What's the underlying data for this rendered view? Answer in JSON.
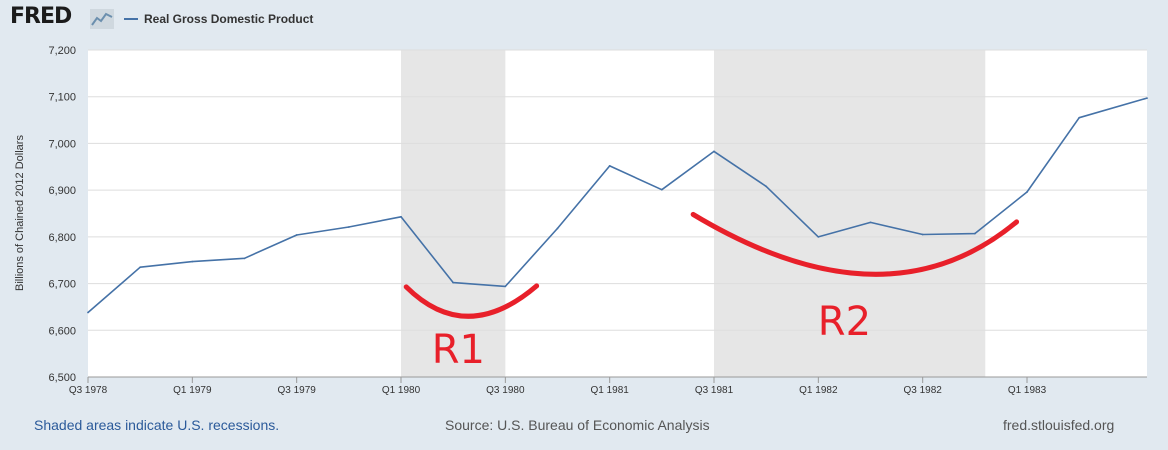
{
  "header": {
    "logo_text": "FRED",
    "logo_icon": "chart-line-icon",
    "legend_label": "Real Gross Domestic Product"
  },
  "colors": {
    "series": "#4572a7",
    "recession": "#e6e6e6",
    "annotation": "#e8202a",
    "background": "#e1e9f0",
    "plot": "#ffffff",
    "grid": "#dddddd"
  },
  "chart_data": {
    "type": "line",
    "title": "",
    "ylabel": "Billions of Chained 2012 Dollars",
    "xlabel": "",
    "ylim": [
      6500,
      7200
    ],
    "xlim": [
      0,
      20.3
    ],
    "yticks": [
      6500,
      6600,
      6700,
      6800,
      6900,
      7000,
      7100,
      7200
    ],
    "ytick_labels": [
      "6,500",
      "6,600",
      "6,700",
      "6,800",
      "6,900",
      "7,000",
      "7,100",
      "7,200"
    ],
    "xticks": [
      {
        "label": "Q3 1978",
        "index": 0
      },
      {
        "label": "Q1 1979",
        "index": 2
      },
      {
        "label": "Q3 1979",
        "index": 4
      },
      {
        "label": "Q1 1980",
        "index": 6
      },
      {
        "label": "Q3 1980",
        "index": 8
      },
      {
        "label": "Q1 1981",
        "index": 10
      },
      {
        "label": "Q3 1981",
        "index": 12
      },
      {
        "label": "Q1 1982",
        "index": 14
      },
      {
        "label": "Q3 1982",
        "index": 16
      },
      {
        "label": "Q1 1983",
        "index": 18
      }
    ],
    "series": [
      {
        "name": "Real Gross Domestic Product",
        "x": [
          0,
          1,
          2,
          3,
          4,
          5,
          6,
          7,
          8,
          9,
          10,
          11,
          12,
          13,
          14,
          15,
          16,
          17,
          18,
          19,
          20.3
        ],
        "values": [
          6638,
          6735,
          6747,
          6754,
          6804,
          6821,
          6843,
          6702,
          6694,
          6818,
          6952,
          6901,
          6983,
          6908,
          6800,
          6831,
          6805,
          6807,
          6896,
          7055,
          7097
        ]
      }
    ],
    "recessions": [
      {
        "start": 6,
        "end": 8
      },
      {
        "start": 12,
        "end": 17.2
      }
    ],
    "annotations": [
      {
        "label": "R1",
        "curve": [
          [
            6.1,
            6693
          ],
          [
            7.3,
            6630
          ],
          [
            8.6,
            6695
          ]
        ],
        "label_pos": [
          7.1,
          6530
        ]
      },
      {
        "label": "R2",
        "curve": [
          [
            11.6,
            6848
          ],
          [
            15.0,
            6720
          ],
          [
            17.8,
            6832
          ]
        ],
        "label_pos": [
          14.5,
          6590
        ]
      }
    ]
  },
  "footer": {
    "note": "Shaded areas indicate U.S. recessions.",
    "source": "Source: U.S. Bureau of Economic Analysis",
    "url": "fred.stlouisfed.org"
  }
}
